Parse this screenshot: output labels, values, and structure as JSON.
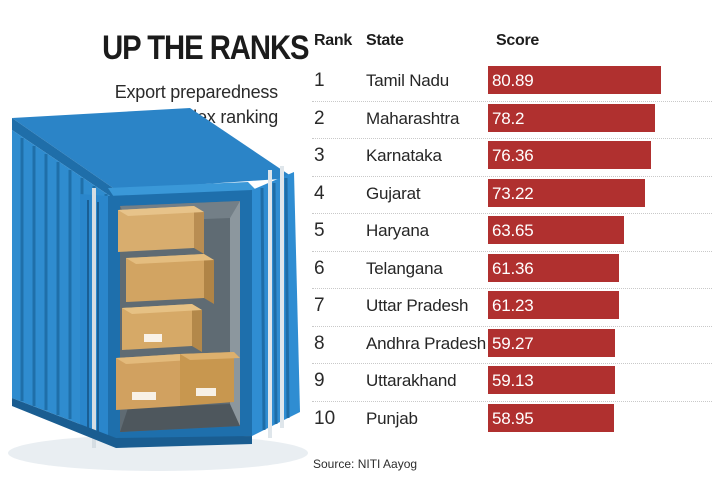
{
  "headline": "UP THE RANKS",
  "subhead_line1": "Export preparedness",
  "subhead_line2": "index ranking",
  "table_headers": {
    "rank": "Rank",
    "state": "State",
    "score": "Score"
  },
  "source": "Source: NITI Aayog",
  "colors": {
    "bar": "#b0302f",
    "container": "#2f87c9"
  },
  "illustration": "shipping-container-with-boxes",
  "chart_data": {
    "type": "bar",
    "orientation": "horizontal",
    "title": "UP THE RANKS",
    "subtitle": "Export preparedness index ranking",
    "ranks": [
      "1",
      "2",
      "3",
      "4",
      "5",
      "6",
      "7",
      "8",
      "9",
      "10"
    ],
    "categories": [
      "Tamil Nadu",
      "Maharashtra",
      "Karnataka",
      "Gujarat",
      "Haryana",
      "Telangana",
      "Uttar Pradesh",
      "Andhra Pradesh",
      "Uttarakhand",
      "Punjab"
    ],
    "value_labels": [
      "80.89",
      "78.2",
      "76.36",
      "73.22",
      "63.65",
      "61.36",
      "61.23",
      "59.27",
      "59.13",
      "58.95"
    ],
    "values": [
      80.89,
      78.2,
      76.36,
      73.22,
      63.65,
      61.36,
      61.23,
      59.27,
      59.13,
      58.95
    ],
    "xlim": [
      0,
      80.89
    ],
    "grid": false,
    "legend": "none"
  }
}
